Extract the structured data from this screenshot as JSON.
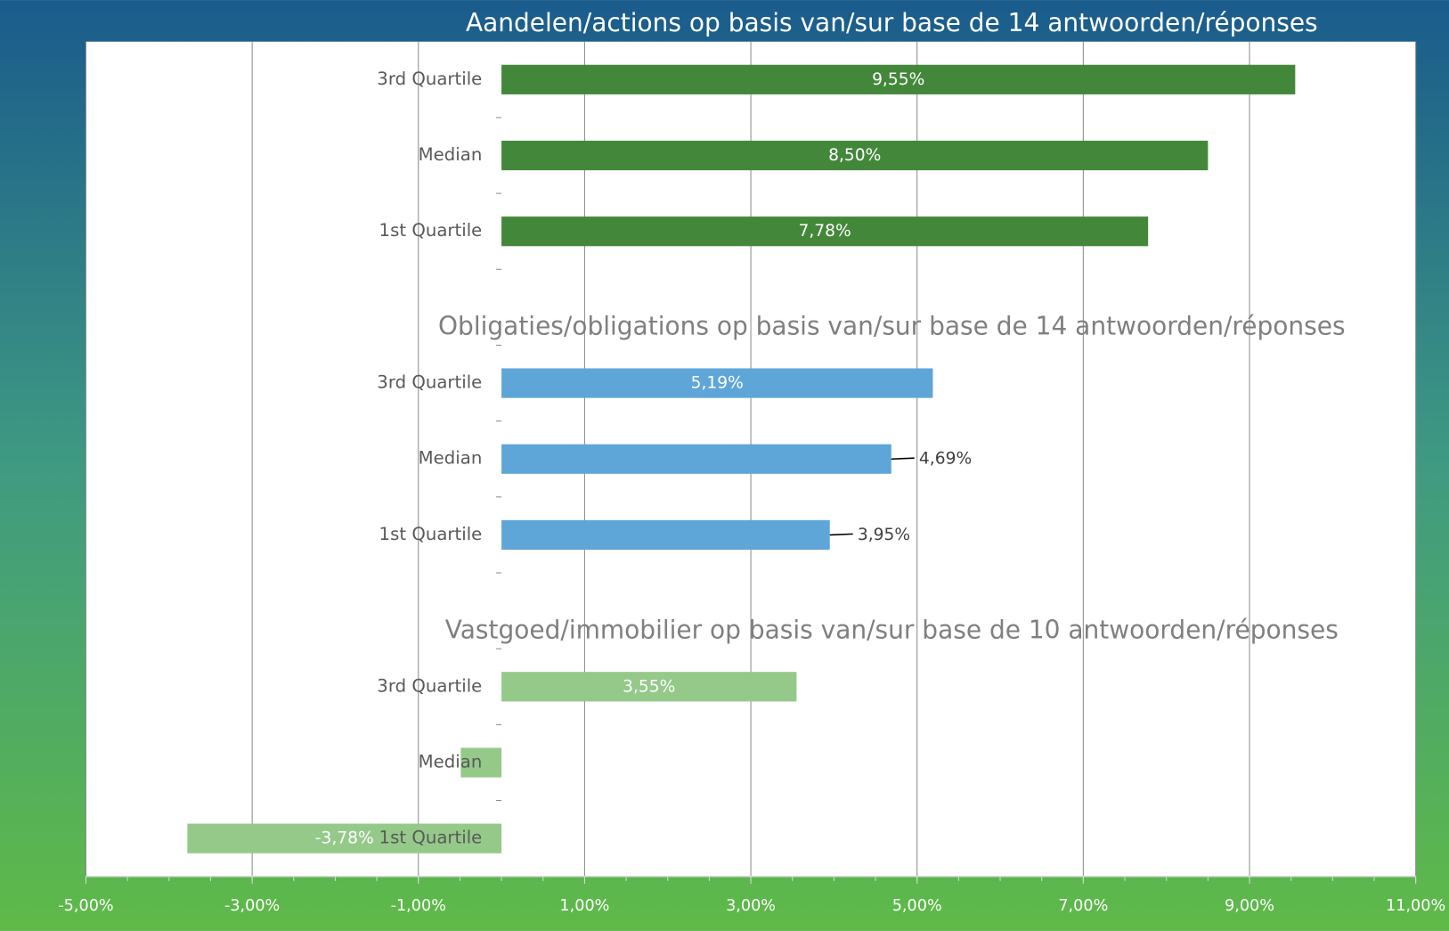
{
  "chart_data": {
    "type": "bar",
    "orientation": "horizontal",
    "groups": [
      {
        "title": "Aandelen/actions op basis van/sur base de 14 antwoorden/réponses",
        "color": "#43883a",
        "categories": [
          "3rd Quartile",
          "Median",
          "1st Quartile"
        ],
        "values": [
          9.55,
          8.5,
          7.78
        ],
        "value_labels": [
          "9,55%",
          "8,50%",
          "7,78%"
        ]
      },
      {
        "title": "Obligaties/obligations op basis van/sur base de 14 antwoorden/réponses",
        "color": "#5fa6d8",
        "categories": [
          "3rd Quartile",
          "Median",
          "1st Quartile"
        ],
        "values": [
          5.19,
          4.69,
          3.95
        ],
        "value_labels": [
          "5,19%",
          "4,69%",
          "3,95%"
        ]
      },
      {
        "title": "Vastgoed/immobilier op basis van/sur base de 10 antwoorden/réponses",
        "color": "#95c98a",
        "categories": [
          "3rd Quartile",
          "Median",
          "1st Quartile"
        ],
        "values": [
          3.55,
          -0.49,
          -3.78
        ],
        "value_labels": [
          "3,55%",
          null,
          "-3,78%"
        ]
      }
    ],
    "xlim": [
      -5,
      11
    ],
    "xticks": [
      {
        "value": -5,
        "label": "-5,00%"
      },
      {
        "value": -3,
        "label": "-3,00%"
      },
      {
        "value": -1,
        "label": "-1,00%"
      },
      {
        "value": 1,
        "label": "1,00%"
      },
      {
        "value": 3,
        "label": "3,00%"
      },
      {
        "value": 5,
        "label": "5,00%"
      },
      {
        "value": 7,
        "label": "7,00%"
      },
      {
        "value": 9,
        "label": "9,00%"
      },
      {
        "value": 11,
        "label": "11,00%"
      }
    ],
    "grid": true
  }
}
